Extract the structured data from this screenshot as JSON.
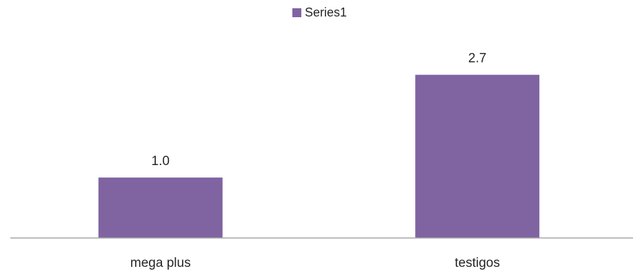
{
  "chart_data": {
    "type": "bar",
    "categories": [
      "mega plus",
      "testigos"
    ],
    "series": [
      {
        "name": "Series1",
        "values": [
          1.0,
          2.7
        ],
        "color": "#8064A2"
      }
    ],
    "data_labels": [
      "1.0",
      "2.7"
    ],
    "ylim": [
      0,
      3.3
    ],
    "legend": {
      "position": "top",
      "entries": [
        "Series1"
      ]
    },
    "grid": false,
    "colors": {
      "bar": "#8064A2",
      "axis": "#A6A6A6",
      "text": "#262626"
    }
  }
}
